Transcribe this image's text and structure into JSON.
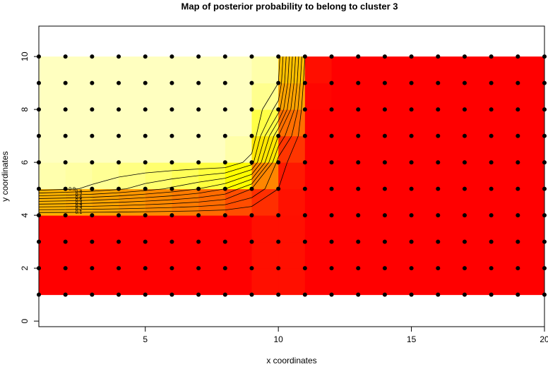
{
  "chart_data": {
    "type": "image-contour",
    "title": "Map of posterior probability to belong to cluster  3",
    "x_label": "x coordinates",
    "y_label": "y coordinates",
    "x": [
      1,
      2,
      3,
      4,
      5,
      6,
      7,
      8,
      9,
      10,
      11,
      12,
      13,
      14,
      15,
      16,
      17,
      18,
      19,
      20
    ],
    "y": [
      1,
      2,
      3,
      4,
      5,
      6,
      7,
      8,
      9,
      10
    ],
    "z": [
      [
        0,
        0,
        0,
        0,
        0,
        0,
        0,
        0,
        0,
        0.08,
        0,
        0,
        0,
        0,
        0,
        0,
        0,
        0,
        0,
        0
      ],
      [
        0,
        0,
        0,
        0,
        0,
        0,
        0,
        0,
        0,
        0.08,
        0,
        0,
        0,
        0,
        0,
        0,
        0,
        0,
        0,
        0
      ],
      [
        0,
        0,
        0,
        0,
        0,
        0,
        0,
        0,
        0,
        0.08,
        0,
        0,
        0,
        0,
        0,
        0,
        0,
        0,
        0,
        0
      ],
      [
        0,
        0,
        0,
        0,
        0,
        0,
        0,
        0,
        0,
        0.08,
        0,
        0,
        0,
        0,
        0,
        0,
        0,
        0,
        0,
        0
      ],
      [
        0.95,
        0.92,
        0.88,
        0.82,
        0.75,
        0.68,
        0.6,
        0.5,
        0.3,
        0.1,
        0,
        0,
        0,
        0,
        0,
        0,
        0,
        0,
        0,
        0
      ],
      [
        1,
        1,
        1,
        1,
        1,
        1,
        1,
        1,
        0.85,
        0.15,
        0,
        0,
        0,
        0,
        0,
        0,
        0,
        0,
        0,
        0
      ],
      [
        1,
        1,
        1,
        1,
        1,
        1,
        1,
        1,
        1,
        0.4,
        0,
        0,
        0,
        0,
        0,
        0,
        0,
        0,
        0,
        0
      ],
      [
        1,
        1,
        1,
        1,
        1,
        1,
        1,
        1,
        1,
        0.75,
        0,
        0,
        0,
        0,
        0,
        0,
        0,
        0,
        0,
        0
      ],
      [
        1,
        1,
        1,
        1,
        1,
        1,
        1,
        1,
        1,
        0.9,
        0.05,
        0,
        0,
        0,
        0,
        0,
        0,
        0,
        0,
        0
      ],
      [
        1,
        1,
        1,
        1,
        1,
        1,
        1,
        1,
        1,
        0.95,
        0.1,
        0,
        0,
        0,
        0,
        0,
        0,
        0,
        0,
        0
      ]
    ],
    "palette": [
      "#ff0000",
      "#ff8000",
      "#ffff00",
      "#ffffc0"
    ],
    "contour_levels": [
      0.1,
      0.2,
      0.3,
      0.4,
      0.5,
      0.6,
      0.7,
      0.8,
      0.9
    ],
    "point_color": "#000000",
    "xlim": [
      1,
      20
    ],
    "ylim": [
      -0.21,
      11.15
    ],
    "xticks": [
      5,
      10,
      15,
      20
    ],
    "yticks": [
      0,
      2,
      4,
      6,
      8,
      10
    ]
  }
}
